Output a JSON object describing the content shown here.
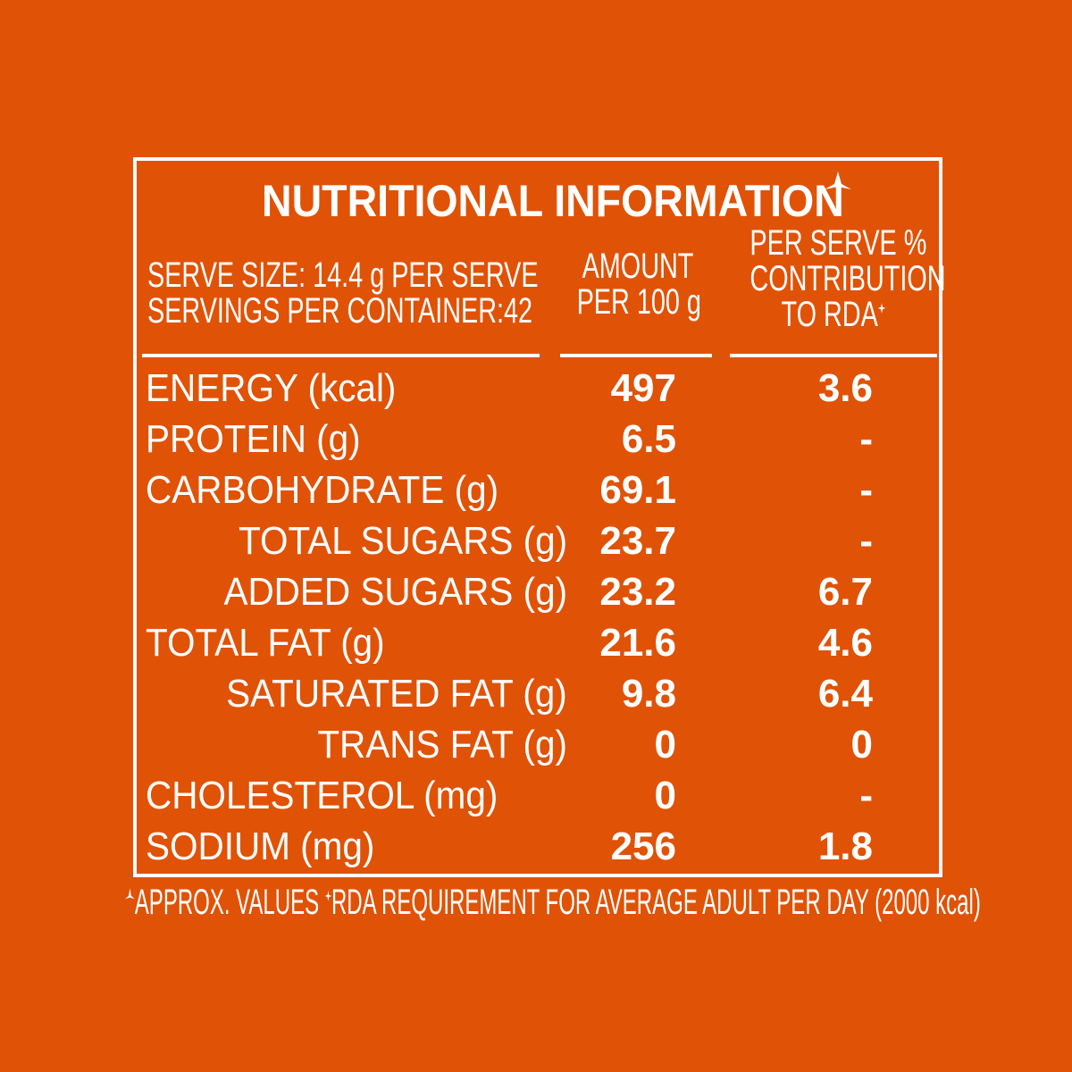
{
  "title": "NUTRITIONAL INFORMATION",
  "header": {
    "serve_size": "SERVE SIZE: 14.4 g PER SERVE",
    "servings": "SERVINGS PER CONTAINER:42",
    "amount_line1": "AMOUNT",
    "amount_line2": "PER 100 g",
    "rda_line1": "PER SERVE %",
    "rda_line2": "CONTRIBUTION",
    "rda_line3": "TO RDA"
  },
  "rows": [
    {
      "name": "ENERGY (kcal)",
      "amount": "497",
      "rda": "3.6"
    },
    {
      "name": "PROTEIN (g)",
      "amount": "6.5",
      "rda": "-"
    },
    {
      "name": "CARBOHYDRATE (g)",
      "amount": "69.1",
      "rda": "-"
    },
    {
      "name": "TOTAL SUGARS (g)",
      "amount": "23.7",
      "rda": "-"
    },
    {
      "name": "ADDED SUGARS (g)",
      "amount": "23.2",
      "rda": "6.7"
    },
    {
      "name": "TOTAL FAT (g)",
      "amount": "21.6",
      "rda": "4.6"
    },
    {
      "name": "SATURATED FAT (g)",
      "amount": "9.8",
      "rda": "6.4"
    },
    {
      "name": "TRANS FAT (g)",
      "amount": "0",
      "rda": "0"
    },
    {
      "name": "CHOLESTEROL (mg)",
      "amount": "0",
      "rda": "-"
    },
    {
      "name": "SODIUM (mg)",
      "amount": "256",
      "rda": "1.8"
    }
  ],
  "footnote": {
    "approx": "APPROX. VALUES",
    "rda": "RDA REQUIREMENT FOR AVERAGE ADULT PER DAY (2000 kcal)"
  },
  "colors": {
    "background": "#e05206",
    "foreground": "#ffffff"
  },
  "icons": {
    "approx_mark": "triangle-star-icon",
    "rda_mark": "sparkle-icon"
  }
}
